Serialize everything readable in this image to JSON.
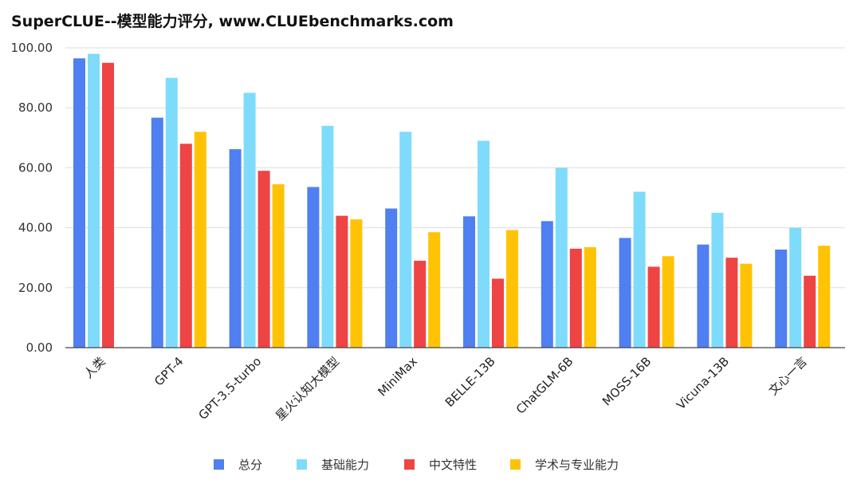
{
  "title": "SuperCLUE--模型能力评分, www.CLUEbenchmarks.com",
  "chart_data": {
    "type": "bar",
    "title": "SuperCLUE--模型能力评分, www.CLUEbenchmarks.com",
    "xlabel": "",
    "ylabel": "",
    "ylim": [
      0,
      100
    ],
    "yticks": [
      "0.00",
      "20.00",
      "40.00",
      "60.00",
      "80.00",
      "100.00"
    ],
    "grid": true,
    "legend_position": "bottom",
    "categories": [
      "人类",
      "GPT-4",
      "GPT-3.5-turbo",
      "星火认知大模型",
      "MiniMax",
      "BELLE-13B",
      "ChatGLM-6B",
      "MOSS-16B",
      "Vicuna-13B",
      "文心一言"
    ],
    "series": [
      {
        "name": "总分",
        "color": "#4f7ff0",
        "values": [
          96.5,
          76.7,
          66.2,
          53.6,
          46.4,
          43.8,
          42.2,
          36.6,
          34.4,
          32.7
        ]
      },
      {
        "name": "基础能力",
        "color": "#7fdbfb",
        "values": [
          98.0,
          90.0,
          85.0,
          74.0,
          72.0,
          69.0,
          60.0,
          52.0,
          45.0,
          40.0
        ]
      },
      {
        "name": "中文特性",
        "color": "#ee4444",
        "values": [
          95.0,
          68.0,
          59.0,
          44.0,
          29.0,
          23.0,
          33.0,
          27.0,
          30.0,
          24.0
        ]
      },
      {
        "name": "学术与专业能力",
        "color": "#ffc305",
        "values": [
          null,
          72.0,
          54.5,
          42.8,
          38.5,
          39.2,
          33.5,
          30.5,
          28.0,
          34.0
        ]
      }
    ]
  }
}
